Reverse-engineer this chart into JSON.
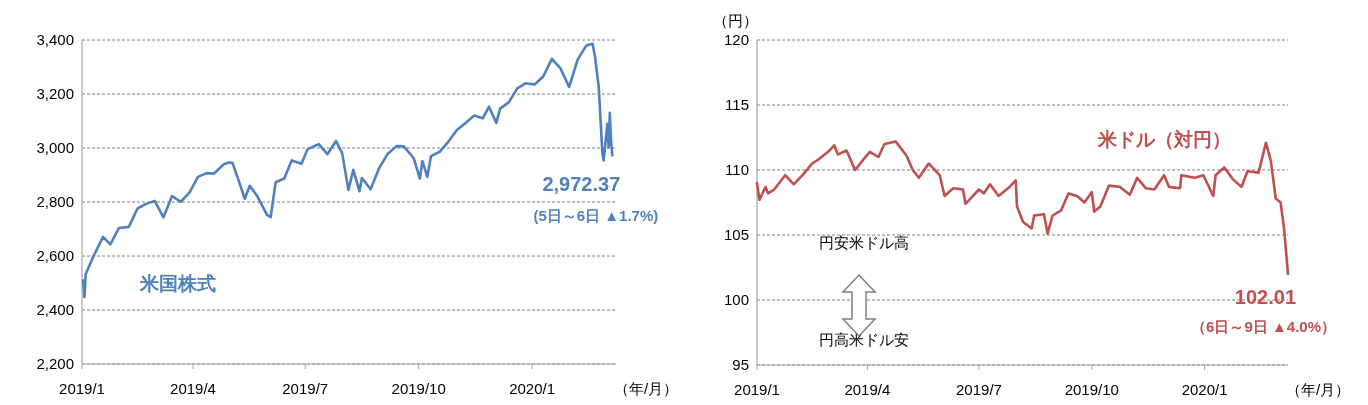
{
  "chart_data": [
    {
      "type": "line",
      "xlabel": "（年/月）",
      "grid": "y",
      "line_style": "solid",
      "marker": "none",
      "xlim": [
        "2019-01-01",
        "2020-03-09"
      ],
      "xticks": [
        {
          "value": "2019-01-01",
          "label": "2019/1"
        },
        {
          "value": "2019-04-01",
          "label": "2019/4"
        },
        {
          "value": "2019-07-01",
          "label": "2019/7"
        },
        {
          "value": "2019-10-01",
          "label": "2019/10"
        },
        {
          "value": "2020-01-01",
          "label": "2020/1"
        }
      ],
      "ylim": [
        2200,
        3400
      ],
      "yticks": [
        {
          "value": 2200,
          "label": "2,200"
        },
        {
          "value": 2400,
          "label": "2,400"
        },
        {
          "value": 2600,
          "label": "2,600"
        },
        {
          "value": 2800,
          "label": "2,800"
        },
        {
          "value": 3000,
          "label": "3,000"
        },
        {
          "value": 3200,
          "label": "3,200"
        },
        {
          "value": 3400,
          "label": "3,400"
        }
      ],
      "annotations": [
        {
          "text": "2,972.37",
          "x": "2020-03-06",
          "y": 2972.37
        },
        "(5日～6日 ▲1.7%)"
      ],
      "series": [
        {
          "name": "米国株式",
          "color": "#4f81bd",
          "x": [
            "2019-01-02",
            "2019-01-03",
            "2019-01-04",
            "2019-01-10",
            "2019-01-18",
            "2019-01-24",
            "2019-01-31",
            "2019-02-08",
            "2019-02-15",
            "2019-02-22",
            "2019-03-01",
            "2019-03-08",
            "2019-03-15",
            "2019-03-22",
            "2019-03-29",
            "2019-04-05",
            "2019-04-12",
            "2019-04-18",
            "2019-04-26",
            "2019-04-30",
            "2019-05-03",
            "2019-05-08",
            "2019-05-13",
            "2019-05-17",
            "2019-05-23",
            "2019-05-31",
            "2019-06-03",
            "2019-06-07",
            "2019-06-14",
            "2019-06-20",
            "2019-06-28",
            "2019-07-03",
            "2019-07-12",
            "2019-07-19",
            "2019-07-26",
            "2019-07-31",
            "2019-08-05",
            "2019-08-09",
            "2019-08-14",
            "2019-08-16",
            "2019-08-23",
            "2019-08-30",
            "2019-09-06",
            "2019-09-13",
            "2019-09-19",
            "2019-09-27",
            "2019-10-02",
            "2019-10-04",
            "2019-10-08",
            "2019-10-11",
            "2019-10-18",
            "2019-10-25",
            "2019-11-01",
            "2019-11-08",
            "2019-11-15",
            "2019-11-22",
            "2019-11-27",
            "2019-12-03",
            "2019-12-06",
            "2019-12-13",
            "2019-12-20",
            "2019-12-27",
            "2020-01-03",
            "2020-01-10",
            "2020-01-17",
            "2020-01-24",
            "2020-01-31",
            "2020-02-07",
            "2020-02-14",
            "2020-02-19",
            "2020-02-21",
            "2020-02-24",
            "2020-02-27",
            "2020-02-28",
            "2020-03-02",
            "2020-03-03",
            "2020-03-04",
            "2020-03-05",
            "2020-03-06"
          ],
          "values": [
            2510,
            2448,
            2532,
            2596,
            2671,
            2643,
            2704,
            2708,
            2776,
            2793,
            2804,
            2743,
            2822,
            2801,
            2834,
            2893,
            2907,
            2905,
            2940,
            2946,
            2945,
            2880,
            2812,
            2860,
            2823,
            2752,
            2744,
            2873,
            2887,
            2954,
            2942,
            2996,
            3014,
            2977,
            3026,
            2980,
            2845,
            2919,
            2840,
            2889,
            2847,
            2926,
            2979,
            3007,
            3006,
            2962,
            2887,
            2952,
            2893,
            2970,
            2986,
            3023,
            3067,
            3093,
            3120,
            3110,
            3153,
            3093,
            3146,
            3169,
            3221,
            3240,
            3235,
            3265,
            3330,
            3295,
            3226,
            3328,
            3380,
            3386,
            3338,
            3226,
            2979,
            2954,
            3090,
            3003,
            3130,
            3024,
            2972.37
          ]
        }
      ]
    },
    {
      "type": "line",
      "xlabel": "（年/月）",
      "ylabel": "（円）",
      "grid": "y",
      "line_style": "solid",
      "marker": "none",
      "xlim": [
        "2019-01-01",
        "2020-03-09"
      ],
      "xticks": [
        {
          "value": "2019-01-01",
          "label": "2019/1"
        },
        {
          "value": "2019-04-01",
          "label": "2019/4"
        },
        {
          "value": "2019-07-01",
          "label": "2019/7"
        },
        {
          "value": "2019-10-01",
          "label": "2019/10"
        },
        {
          "value": "2020-01-01",
          "label": "2020/1"
        }
      ],
      "ylim": [
        95,
        120
      ],
      "yticks": [
        95,
        100,
        105,
        110,
        115,
        120
      ],
      "annotations": [
        {
          "text": "102.01",
          "x": "2020-03-09",
          "y": 102.01
        },
        "（6日～9日 ▲4.0%）",
        "円安米ドル高",
        "円高米ドル安"
      ],
      "series": [
        {
          "name": "米ドル（対円）",
          "color": "#c0504d",
          "x": [
            "2019-01-01",
            "2019-01-03",
            "2019-01-08",
            "2019-01-10",
            "2019-01-15",
            "2019-01-24",
            "2019-01-31",
            "2019-02-08",
            "2019-02-15",
            "2019-02-20",
            "2019-02-28",
            "2019-03-05",
            "2019-03-08",
            "2019-03-15",
            "2019-03-22",
            "2019-03-27",
            "2019-04-03",
            "2019-04-10",
            "2019-04-15",
            "2019-04-24",
            "2019-05-03",
            "2019-05-08",
            "2019-05-13",
            "2019-05-21",
            "2019-05-30",
            "2019-06-03",
            "2019-06-10",
            "2019-06-18",
            "2019-06-20",
            "2019-07-01",
            "2019-07-05",
            "2019-07-10",
            "2019-07-17",
            "2019-07-26",
            "2019-07-31",
            "2019-08-01",
            "2019-08-06",
            "2019-08-13",
            "2019-08-15",
            "2019-08-23",
            "2019-08-26",
            "2019-08-30",
            "2019-09-06",
            "2019-09-12",
            "2019-09-19",
            "2019-09-25",
            "2019-10-01",
            "2019-10-03",
            "2019-10-08",
            "2019-10-15",
            "2019-10-24",
            "2019-11-01",
            "2019-11-07",
            "2019-11-14",
            "2019-11-21",
            "2019-11-29",
            "2019-12-03",
            "2019-12-12",
            "2019-12-13",
            "2019-12-24",
            "2019-12-31",
            "2020-01-08",
            "2020-01-10",
            "2020-01-17",
            "2020-01-24",
            "2020-01-31",
            "2020-02-05",
            "2020-02-14",
            "2020-02-20",
            "2020-02-24",
            "2020-02-28",
            "2020-03-03",
            "2020-03-06",
            "2020-03-09"
          ],
          "values": [
            109.0,
            107.7,
            108.7,
            108.2,
            108.5,
            109.6,
            108.9,
            109.7,
            110.5,
            110.8,
            111.4,
            111.9,
            111.2,
            111.5,
            110.0,
            110.6,
            111.4,
            111.0,
            112.0,
            112.2,
            111.1,
            110.0,
            109.4,
            110.5,
            109.6,
            108.0,
            108.6,
            108.5,
            107.4,
            108.5,
            108.2,
            108.9,
            108.0,
            108.7,
            109.2,
            107.2,
            106.0,
            105.5,
            106.5,
            106.6,
            105.1,
            106.5,
            106.9,
            108.2,
            108.0,
            107.5,
            108.3,
            106.8,
            107.2,
            108.8,
            108.7,
            108.1,
            109.4,
            108.6,
            108.5,
            109.6,
            108.7,
            108.6,
            109.6,
            109.4,
            109.6,
            108.0,
            109.6,
            110.2,
            109.3,
            108.7,
            109.9,
            109.8,
            112.1,
            110.7,
            107.8,
            107.5,
            105.3,
            102.01
          ]
        }
      ]
    }
  ]
}
